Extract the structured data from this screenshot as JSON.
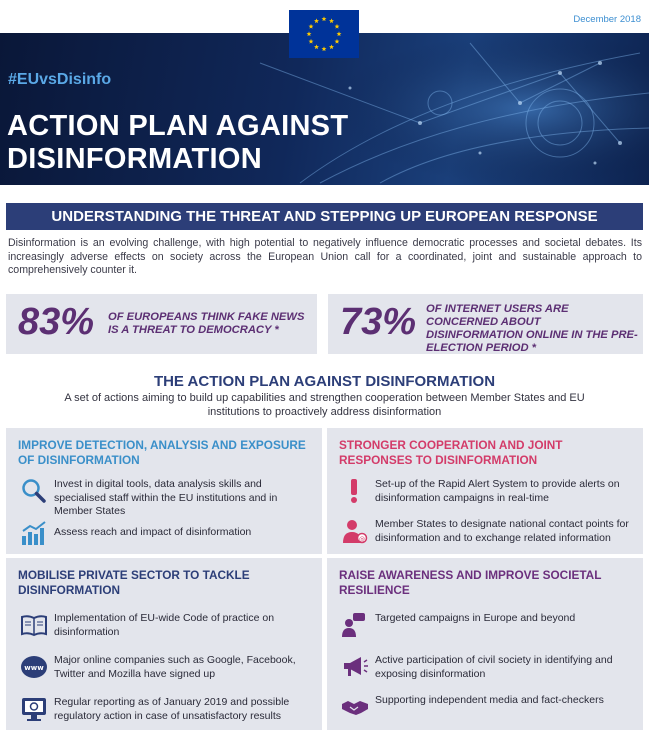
{
  "header": {
    "date": "December 2018",
    "hashtag": "#EUvsDisinfo",
    "title_line1": "ACTION PLAN AGAINST",
    "title_line2": "DISINFORMATION"
  },
  "section": {
    "title": "UNDERSTANDING THE THREAT AND STEPPING UP EUROPEAN RESPONSE",
    "intro": "Disinformation is an evolving challenge, with high potential to negatively influence democratic processes and societal debates. Its increasingly adverse effects on society across the European Union call for a coordinated, joint and sustainable approach to comprehensively counter it."
  },
  "stats": [
    {
      "value": "83%",
      "text": "of Europeans think fake news is a threat to democracy *"
    },
    {
      "value": "73%",
      "text": "of internet users are concerned about disinformation online in the pre-election period *"
    }
  ],
  "plan": {
    "title": "THE ACTION PLAN AGAINST DISINFORMATION",
    "subtitle": "A set of actions aiming to build up capabilities and strengthen cooperation between Member States and EU institutions to proactively address disinformation"
  },
  "pillars": [
    {
      "title": "Improve detection, analysis and exposure of disinformation",
      "items": [
        {
          "icon": "magnifier-icon",
          "text": "Invest in digital tools, data analysis skills and specialised staff within the EU institutions and in Member States"
        },
        {
          "icon": "bar-chart-icon",
          "text": "Assess reach and impact of disinformation"
        }
      ]
    },
    {
      "title": "Stronger cooperation and joint responses to disinformation",
      "items": [
        {
          "icon": "exclamation-icon",
          "text": "Set-up of the Rapid Alert System to provide alerts on disinformation campaigns in real-time"
        },
        {
          "icon": "contact-person-icon",
          "text": "Member States to designate national contact points for disinformation and to exchange related information"
        }
      ]
    },
    {
      "title": "Mobilise private sector to tackle disinformation",
      "items": [
        {
          "icon": "book-icon",
          "text": "Implementation of EU-wide Code of practice on disinformation"
        },
        {
          "icon": "www-icon",
          "text": "Major online companies such as Google, Facebook, Twitter and Mozilla have signed up"
        },
        {
          "icon": "monitor-report-icon",
          "text": "Regular reporting as of January 2019 and possible regulatory action in case of unsatisfactory results"
        }
      ]
    },
    {
      "title": "Raise awareness and improve societal resilience",
      "items": [
        {
          "icon": "people-talk-icon",
          "text": "Targeted campaigns in Europe and beyond"
        },
        {
          "icon": "megaphone-icon",
          "text": "Active participation of civil society in identifying and exposing disinformation"
        },
        {
          "icon": "handshake-icon",
          "text": "Supporting independent media and fact-checkers"
        }
      ]
    }
  ],
  "colors": {
    "navy": "#2c3e78",
    "blue": "#3a8fc9",
    "pink": "#d33b69",
    "purple": "#6b2f7d",
    "stat_purple": "#5c2f73",
    "panel": "#e3e5ec"
  }
}
